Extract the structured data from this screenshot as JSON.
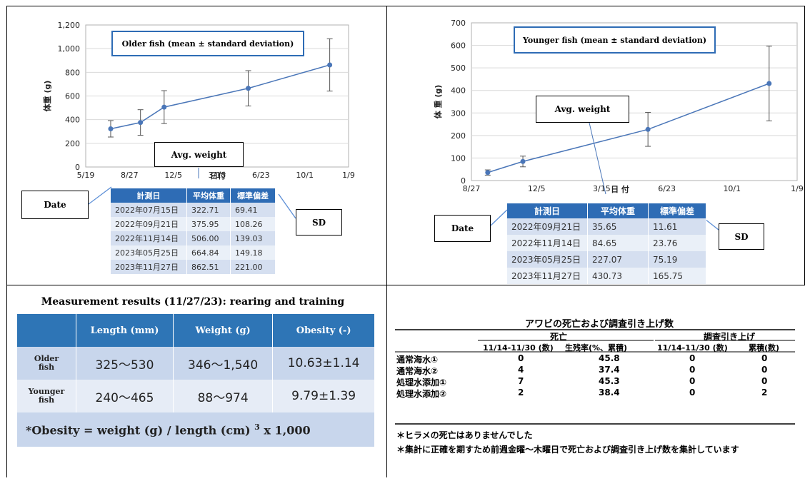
{
  "chart_data": [
    {
      "type": "line",
      "title": "Older fish (mean ± standard deviation)",
      "ylabel": "体重 (g)",
      "xlabel": "日付",
      "x_tick_labels": [
        "5/19",
        "8/27",
        "12/5",
        "3/15",
        "6/23",
        "10/1",
        "1/9"
      ],
      "y_ticks": [
        "0",
        "200",
        "400",
        "600",
        "800",
        "1,000",
        "1,200"
      ],
      "ylim": [
        0,
        1200
      ],
      "series": [
        {
          "x": [
            "2022-07-15",
            "2022-09-21",
            "2022-11-14",
            "2023-05-25",
            "2023-11-27"
          ],
          "y": [
            322.71,
            375.95,
            506.0,
            664.84,
            862.51
          ],
          "error": [
            69.41,
            108.26,
            139.03,
            149.18,
            221.0
          ]
        }
      ],
      "grid": "horizontal",
      "callout": "Avg. weight"
    },
    {
      "type": "line",
      "title": "Younger fish (mean ± standard deviation)",
      "ylabel": "体 重 (g)",
      "xlabel": "日 付",
      "x_tick_labels": [
        "8/27",
        "12/5",
        "3/15",
        "6/23",
        "10/1",
        "1/9"
      ],
      "y_ticks": [
        "0",
        "100",
        "200",
        "300",
        "400",
        "500",
        "600",
        "700"
      ],
      "ylim": [
        0,
        700
      ],
      "series": [
        {
          "x": [
            "2022-09-21",
            "2022-11-14",
            "2023-05-25",
            "2023-11-27"
          ],
          "y": [
            35.65,
            84.65,
            227.07,
            430.73
          ],
          "error": [
            11.61,
            23.76,
            75.19,
            165.75
          ]
        }
      ],
      "grid": "horizontal",
      "callout": "Avg. weight"
    }
  ],
  "older_table": {
    "headers": [
      "計測日",
      "平均体重",
      "標準偏差"
    ],
    "rows": [
      [
        "2022年07月15日",
        "322.71",
        "69.41"
      ],
      [
        "2022年09月21日",
        "375.95",
        "108.26"
      ],
      [
        "2022年11月14日",
        "506.00",
        "139.03"
      ],
      [
        "2023年05月25日",
        "664.84",
        "149.18"
      ],
      [
        "2023年11月27日",
        "862.51",
        "221.00"
      ]
    ]
  },
  "younger_table": {
    "headers": [
      "計測日",
      "平均体重",
      "標準偏差"
    ],
    "rows": [
      [
        "2022年09月21日",
        "35.65",
        "11.61"
      ],
      [
        "2022年11月14日",
        "84.65",
        "23.76"
      ],
      [
        "2023年05月25日",
        "227.07",
        "75.19"
      ],
      [
        "2023年11月27日",
        "430.73",
        "165.75"
      ]
    ]
  },
  "callouts": {
    "date": "Date",
    "sd": "SD"
  },
  "results": {
    "title": "Measurement results (11/27/23): rearing and training",
    "headers": [
      "",
      "Length (mm)",
      "Weight (g)",
      "Obesity (-)"
    ],
    "rows": [
      {
        "label": [
          "Older",
          "fish"
        ],
        "cells": [
          "325～530",
          "346～1,540",
          "10.63±1.14"
        ]
      },
      {
        "label": [
          "Younger",
          "fish"
        ],
        "cells": [
          "240～465",
          "88～974",
          "9.79±1.39"
        ]
      }
    ],
    "footnote_pre": "*Obesity = weight (g) / length (cm) ",
    "footnote_sup": "3",
    "footnote_post": " x 1,000"
  },
  "abalone": {
    "title": "アワビの死亡および調査引き上げ数",
    "group_headers": [
      "死亡",
      "調査引き上げ"
    ],
    "sub_headers": [
      "11/14-11/30 (数)",
      "生残率(%、累積)",
      "11/14-11/30 (数)",
      "累積(数)"
    ],
    "rows": [
      {
        "label": "通常海水①",
        "values": [
          "0",
          "45.8",
          "0",
          "0"
        ]
      },
      {
        "label": "通常海水②",
        "values": [
          "4",
          "37.4",
          "0",
          "0"
        ]
      },
      {
        "label": "処理水添加①",
        "values": [
          "7",
          "45.3",
          "0",
          "0"
        ]
      },
      {
        "label": "処理水添加②",
        "values": [
          "2",
          "38.4",
          "0",
          "2"
        ]
      }
    ],
    "notes": [
      "＊ヒラメの死亡はありませんでした",
      "＊集計に正確を期すため前週金曜～木曜日で死亡および調査引き上げ数を集計しています"
    ]
  }
}
